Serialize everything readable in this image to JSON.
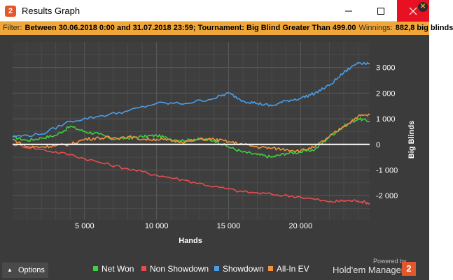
{
  "window": {
    "title": "Results Graph",
    "app_icon_text": "2"
  },
  "filter": {
    "label": "Filter:",
    "value": "Between 30.06.2018 0:00 and 31.07.2018 23:59; Tournament: Big Blind Greater Than 499.00",
    "winnings_label": "Winnings:",
    "winnings_value": "882,8 big blinds"
  },
  "chart_data": {
    "type": "line",
    "xlabel": "Hands",
    "ylabel": "Big Blinds",
    "x_ticks": [
      "5 000",
      "10 000",
      "15 000",
      "20 000"
    ],
    "x_tick_values": [
      5000,
      10000,
      15000,
      20000
    ],
    "y_ticks": [
      "3 000",
      "2 000",
      "1 000",
      "0",
      "-1 000",
      "-2 000"
    ],
    "y_tick_values": [
      3000,
      2000,
      1000,
      0,
      -1000,
      -2000
    ],
    "xlim": [
      0,
      24800
    ],
    "ylim": [
      -2950,
      4000
    ],
    "grid": true,
    "legend_position": "bottom",
    "series": [
      {
        "name": "Net Won",
        "color": "#3dd13d",
        "points": [
          [
            0,
            300
          ],
          [
            1000,
            150
          ],
          [
            2000,
            250
          ],
          [
            3000,
            350
          ],
          [
            4000,
            700
          ],
          [
            5000,
            500
          ],
          [
            6000,
            400
          ],
          [
            7000,
            200
          ],
          [
            8000,
            250
          ],
          [
            9000,
            300
          ],
          [
            10000,
            350
          ],
          [
            11000,
            200
          ],
          [
            12000,
            150
          ],
          [
            13000,
            200
          ],
          [
            14000,
            150
          ],
          [
            15000,
            -100
          ],
          [
            16000,
            -300
          ],
          [
            17000,
            -400
          ],
          [
            18000,
            -500
          ],
          [
            19000,
            -350
          ],
          [
            20000,
            -300
          ],
          [
            21000,
            -200
          ],
          [
            22000,
            300
          ],
          [
            23000,
            700
          ],
          [
            24000,
            1000
          ],
          [
            24800,
            900
          ]
        ]
      },
      {
        "name": "Non Showdown",
        "color": "#e84c4c",
        "points": [
          [
            0,
            0
          ],
          [
            2000,
            -200
          ],
          [
            4000,
            -400
          ],
          [
            6000,
            -700
          ],
          [
            8000,
            -950
          ],
          [
            10000,
            -1200
          ],
          [
            12000,
            -1400
          ],
          [
            14000,
            -1650
          ],
          [
            16000,
            -1850
          ],
          [
            18000,
            -1950
          ],
          [
            20000,
            -2050
          ],
          [
            22000,
            -2250
          ],
          [
            23000,
            -2200
          ],
          [
            24000,
            -2200
          ],
          [
            24800,
            -2300
          ]
        ]
      },
      {
        "name": "Showdown",
        "color": "#4a9ee8",
        "points": [
          [
            0,
            300
          ],
          [
            2000,
            400
          ],
          [
            4000,
            900
          ],
          [
            6000,
            1100
          ],
          [
            8000,
            1300
          ],
          [
            10000,
            1600
          ],
          [
            12000,
            1600
          ],
          [
            14000,
            1800
          ],
          [
            15000,
            2000
          ],
          [
            16000,
            1700
          ],
          [
            17000,
            1600
          ],
          [
            18000,
            1500
          ],
          [
            19000,
            1700
          ],
          [
            20000,
            1800
          ],
          [
            21000,
            2000
          ],
          [
            22000,
            2300
          ],
          [
            23000,
            2800
          ],
          [
            24000,
            3200
          ],
          [
            24800,
            3150
          ]
        ]
      },
      {
        "name": "All-In EV",
        "color": "#f0923c",
        "points": [
          [
            0,
            200
          ],
          [
            1000,
            -100
          ],
          [
            2000,
            -100
          ],
          [
            3000,
            -50
          ],
          [
            4000,
            0
          ],
          [
            5000,
            200
          ],
          [
            6000,
            250
          ],
          [
            7000,
            250
          ],
          [
            8000,
            300
          ],
          [
            9000,
            200
          ],
          [
            10000,
            200
          ],
          [
            11000,
            150
          ],
          [
            12000,
            100
          ],
          [
            13000,
            200
          ],
          [
            14000,
            200
          ],
          [
            15000,
            100
          ],
          [
            16000,
            0
          ],
          [
            17000,
            -100
          ],
          [
            18000,
            -150
          ],
          [
            19000,
            -200
          ],
          [
            20000,
            -250
          ],
          [
            21000,
            -100
          ],
          [
            22000,
            300
          ],
          [
            23000,
            700
          ],
          [
            24000,
            1100
          ],
          [
            24800,
            1150
          ]
        ]
      }
    ]
  },
  "options": {
    "label": "Options"
  },
  "branding": {
    "powered_by": "Powered by",
    "name": "Hold'em Manager",
    "logo_text": "2"
  }
}
